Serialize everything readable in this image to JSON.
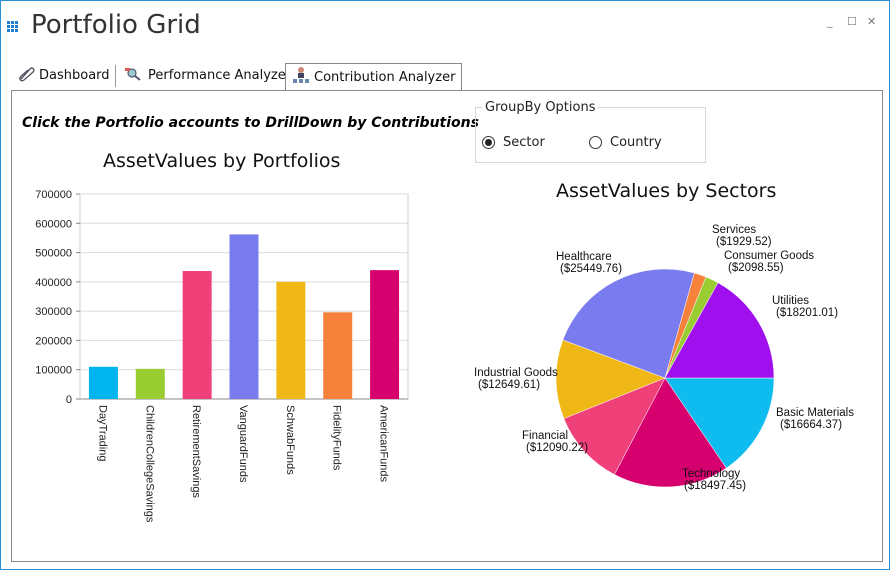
{
  "window": {
    "title": "Portfolio Grid",
    "controls": {
      "minimize": "_",
      "maximize": "☐",
      "close": "✕"
    }
  },
  "tabs": [
    {
      "label": "Dashboard",
      "icon": "paperclip-icon"
    },
    {
      "label": "Performance Analyzer",
      "icon": "analyzer-icon"
    },
    {
      "label": "Contribution Analyzer",
      "icon": "org-chart-icon",
      "active": true
    }
  ],
  "content": {
    "instruction": "Click the Portfolio accounts to DrillDown by Contributions",
    "groupby": {
      "legend": "GroupBy Options",
      "options": [
        {
          "label": "Sector",
          "checked": true
        },
        {
          "label": "Country",
          "checked": false
        }
      ]
    }
  },
  "chart_data": [
    {
      "type": "bar",
      "title": "AssetValues by Portfolios",
      "categories": [
        "DayTrading",
        "ChildrenCollegeSavings",
        "RetirementSavings",
        "VanguardFunds",
        "SchwabFunds",
        "FidelityFunds",
        "AmericanFunds"
      ],
      "values": [
        110000,
        103000,
        437000,
        562000,
        400000,
        296000,
        440000
      ],
      "colors": [
        "#00b4ef",
        "#9acd32",
        "#f0407a",
        "#7b7bf0",
        "#f0b816",
        "#f5813a",
        "#d6006f"
      ],
      "ylim": [
        0,
        700000
      ],
      "yticks": [
        "0",
        "100000",
        "200000",
        "300000",
        "400000",
        "500000",
        "600000",
        "700000"
      ],
      "grid": true
    },
    {
      "type": "pie",
      "title": "AssetValues by Sectors",
      "slices": [
        {
          "name": "Basic Materials",
          "value": 16664.37,
          "label": "($16664.37)",
          "color": "#0fbcef"
        },
        {
          "name": "Technology",
          "value": 18497.45,
          "label": "($18497.45)",
          "color": "#d6006f"
        },
        {
          "name": "Financial",
          "value": 12090.22,
          "label": "($12090.22)",
          "color": "#f0407a"
        },
        {
          "name": "Industrial Goods",
          "value": 12649.61,
          "label": "($12649.61)",
          "color": "#f0b816"
        },
        {
          "name": "Healthcare",
          "value": 25449.76,
          "label": "($25449.76)",
          "color": "#7b7bf0"
        },
        {
          "name": "Services",
          "value": 1929.52,
          "label": "($1929.52)",
          "color": "#f5813a"
        },
        {
          "name": "Consumer Goods",
          "value": 2098.55,
          "label": "($2098.55)",
          "color": "#9acd32"
        },
        {
          "name": "Utilities",
          "value": 18201.01,
          "label": "($18201.01)",
          "color": "#a010ee"
        }
      ]
    }
  ]
}
